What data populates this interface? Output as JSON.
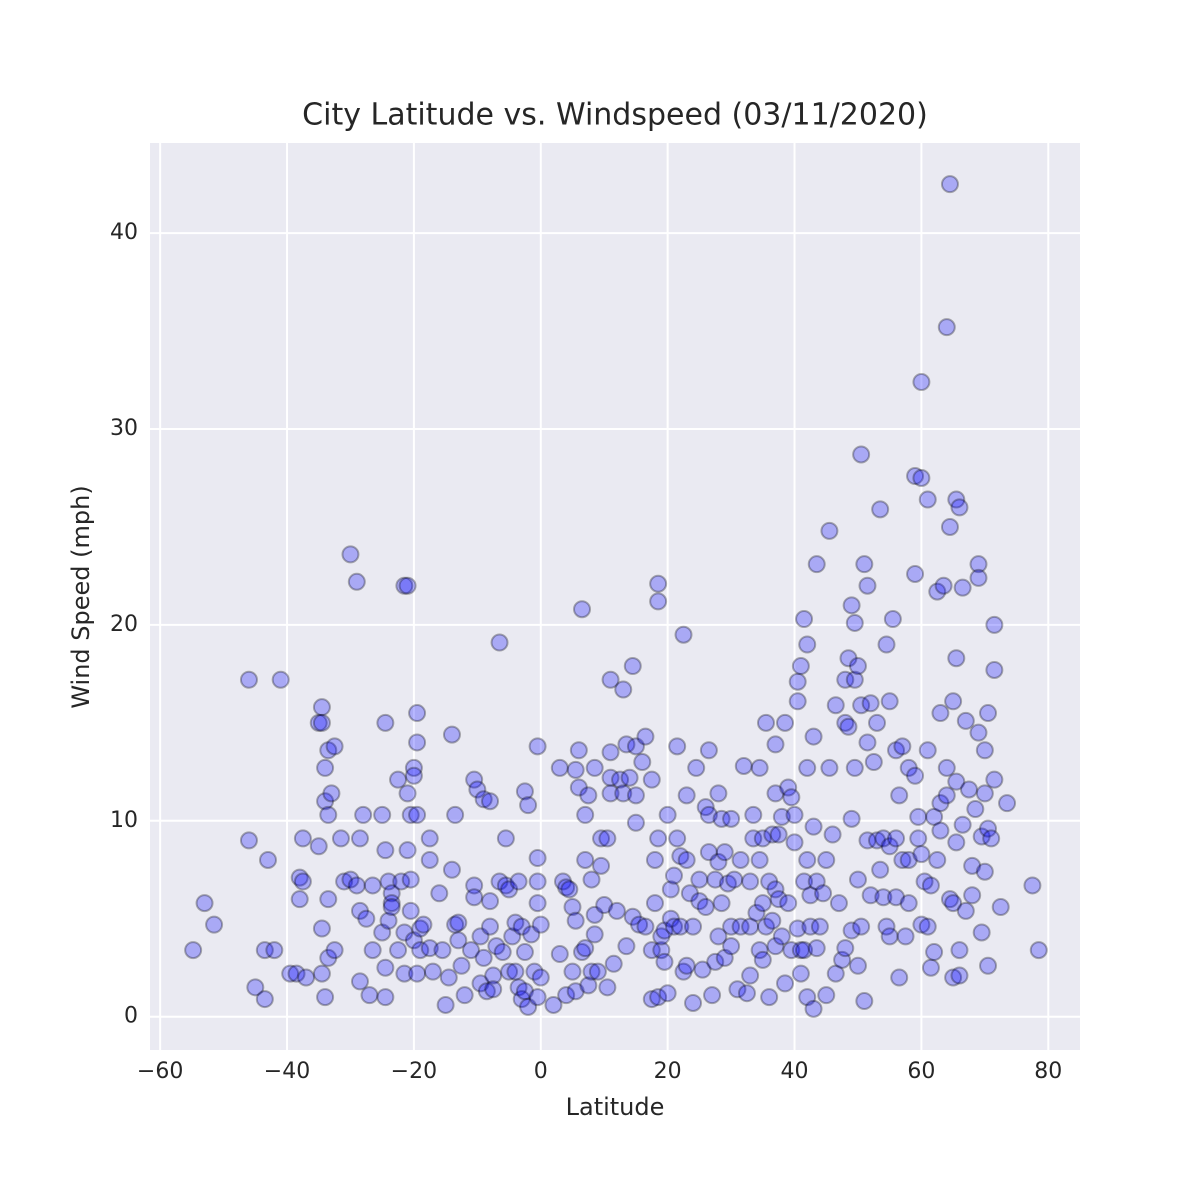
{
  "chart_data": {
    "type": "scatter",
    "title": "City Latitude vs. Windspeed (03/11/2020)",
    "x_label": "Latitude",
    "y_label": "Wind Speed (mph)",
    "color": "#0000ff",
    "grid": true,
    "xlim": [
      -61.6,
      85.0
    ],
    "ylim": [
      -1.7,
      44.6
    ],
    "xticks": [
      {
        "value": -60,
        "label": "−60"
      },
      {
        "value": -40,
        "label": "−40"
      },
      {
        "value": -20,
        "label": "−20"
      },
      0,
      20,
      40,
      60,
      80
    ],
    "yticks": [
      0,
      10,
      20,
      30,
      40
    ],
    "x": [
      -54.8,
      -53,
      -51.5,
      -46,
      -46,
      -45,
      -43.5,
      -43.5,
      -43,
      -42,
      -41,
      -39.5,
      -38.5,
      -38,
      -38,
      -37.5,
      -37.5,
      -37,
      -35,
      -35,
      -34.5,
      -34.5,
      -34.5,
      -34.5,
      -34,
      -34,
      -34,
      -33.5,
      -33.5,
      -33.5,
      -33.5,
      -33,
      -32.5,
      -32.5,
      -31.5,
      -31,
      -30,
      -30,
      -29,
      -29,
      -28.5,
      -28.5,
      -28.5,
      -28,
      -27.5,
      -27,
      -26.5,
      -26.5,
      -25,
      -25,
      -24.5,
      -24.5,
      -24.5,
      -24.5,
      -24,
      -24,
      -23.5,
      -23.5,
      -23.5,
      -22.5,
      -22.5,
      -22,
      -21.5,
      -21.5,
      -21.5,
      -21,
      -21,
      -21,
      -20.5,
      -20.5,
      -20.5,
      -20,
      -20,
      -20,
      -19.5,
      -19.5,
      -19.5,
      -19.5,
      -19,
      -19,
      -18.5,
      -17.5,
      -17.5,
      -17.5,
      -17,
      -16,
      -15.5,
      -15,
      -14.5,
      -14,
      -14,
      -13.5,
      -13.5,
      -13,
      -13,
      -12.5,
      -12,
      -11,
      -10.5,
      -10.5,
      -10.5,
      -10,
      -9.5,
      -9.5,
      -9,
      -9,
      -8.5,
      -8,
      -8,
      -8,
      -7.5,
      -7.5,
      -7,
      -6.5,
      -6.5,
      -6,
      -5.5,
      -5.5,
      -5,
      -5,
      -4.5,
      -4,
      -4,
      -3.5,
      -3.5,
      -3,
      -3,
      -2.5,
      -2.5,
      -2.5,
      -2,
      -2,
      -1.5,
      -1,
      -0.5,
      -0.5,
      -0.5,
      -0.5,
      -0.5,
      0,
      0,
      2,
      3,
      3,
      3.5,
      4,
      4,
      4.5,
      5,
      5,
      5.5,
      5.5,
      5.5,
      6,
      6,
      6.5,
      6.5,
      7,
      7,
      7,
      7.5,
      7.5,
      8,
      8,
      8.5,
      8.5,
      8.5,
      9,
      9.5,
      9.5,
      10,
      10.5,
      10.5,
      11,
      11,
      11,
      11,
      11.5,
      12,
      12.5,
      13,
      13,
      13.5,
      13.5,
      14,
      14.5,
      14.5,
      15,
      15,
      15,
      15.5,
      16,
      16.5,
      16.5,
      17.5,
      17.5,
      17.5,
      18,
      18,
      18.5,
      18.5,
      18.5,
      18.5,
      19,
      19,
      19.5,
      19.5,
      20,
      20,
      20.5,
      20.5,
      21,
      21,
      21.5,
      21.5,
      22,
      22,
      22.5,
      22.5,
      23,
      23,
      23,
      23.5,
      24,
      24,
      24.5,
      25,
      25,
      25.5,
      26,
      26,
      26.5,
      26.5,
      26.5,
      27,
      27.5,
      27.5,
      28,
      28,
      28,
      28.5,
      28.5,
      29,
      29,
      29.5,
      30,
      30,
      30,
      30.5,
      31,
      31.5,
      31.5,
      32,
      32.5,
      33,
      33,
      33,
      33.5,
      33.5,
      34,
      34.5,
      34.5,
      34.5,
      35,
      35,
      35,
      35.5,
      35.5,
      36,
      36,
      36.5,
      36.5,
      37,
      37,
      37,
      37,
      37.5,
      37.5,
      38,
      38,
      38.5,
      38.5,
      39,
      39,
      39.5,
      39.5,
      40,
      40,
      40.5,
      40.5,
      40.5,
      41,
      41,
      41,
      41.5,
      41.5,
      41.5,
      42,
      42,
      42,
      42,
      42.5,
      42.5,
      43,
      43,
      43,
      43.5,
      43.5,
      43.5,
      44,
      44.5,
      45,
      45,
      45.5,
      45.5,
      46,
      46.5,
      46.5,
      47,
      47.5,
      48,
      48,
      48,
      48.5,
      48.5,
      49,
      49,
      49,
      49.5,
      49.5,
      49.5,
      50,
      50,
      50,
      50.5,
      50.5,
      50.5,
      51,
      51,
      51.5,
      51.5,
      51.5,
      52,
      52,
      52.5,
      53,
      53,
      53.5,
      53.5,
      54,
      54,
      54.5,
      54.5,
      55,
      55,
      55,
      55.5,
      56,
      56,
      56,
      56.5,
      56.5,
      57,
      57,
      57.5,
      58,
      58,
      58,
      59,
      59,
      59,
      59.5,
      59.5,
      60,
      60,
      60,
      60,
      60.5,
      61,
      61,
      61,
      61.5,
      61.5,
      62,
      62,
      62.5,
      62.5,
      63,
      63,
      63,
      63.5,
      64,
      64,
      64,
      64.5,
      64.5,
      64.5,
      65,
      65,
      65,
      65.5,
      65.5,
      65.5,
      65.5,
      66,
      66,
      66,
      66.5,
      66.5,
      67,
      67,
      67.5,
      68,
      68,
      68.5,
      69,
      69,
      69,
      69.5,
      69.5,
      70,
      70,
      70,
      70.5,
      70.5,
      70.5,
      71,
      71.5,
      71.5,
      71.5,
      72.5,
      73.5,
      77.5,
      78.5
    ],
    "values": [
      3.4,
      5.8,
      4.7,
      17.2,
      9,
      1.5,
      0.9,
      3.4,
      8,
      3.4,
      17.2,
      2.2,
      2.2,
      6,
      7.1,
      9.1,
      6.9,
      2,
      15,
      8.7,
      15.8,
      15,
      4.5,
      2.2,
      12.7,
      1,
      11,
      13.6,
      10.3,
      6,
      3,
      11.4,
      13.8,
      3.4,
      9.1,
      6.9,
      23.6,
      7,
      6.7,
      22.2,
      9.1,
      5.4,
      1.8,
      10.3,
      5,
      1.1,
      6.7,
      3.4,
      10.3,
      4.3,
      15,
      8.5,
      2.5,
      1,
      6.9,
      4.9,
      6.3,
      5.8,
      5.6,
      12.1,
      3.4,
      6.9,
      2.2,
      4.3,
      22,
      22,
      8.5,
      11.4,
      10.3,
      7,
      5.4,
      12.7,
      12.3,
      3.9,
      15.5,
      14,
      10.3,
      2.2,
      3.4,
      4.5,
      4.7,
      9.1,
      8,
      3.5,
      2.3,
      6.3,
      3.4,
      0.6,
      2,
      14.4,
      7.5,
      10.3,
      4.7,
      4.8,
      3.9,
      2.6,
      1.1,
      3.4,
      12.1,
      6.7,
      6.1,
      11.6,
      4.1,
      1.7,
      11.1,
      3,
      1.3,
      11,
      5.9,
      4.6,
      2.1,
      1.4,
      3.6,
      19.1,
      6.9,
      3.3,
      9.1,
      6.7,
      6.5,
      2.3,
      4.1,
      4.8,
      2.3,
      6.9,
      1.5,
      4.6,
      0.9,
      11.5,
      3.3,
      1.3,
      10.8,
      0.5,
      4.2,
      2.3,
      13.8,
      8.1,
      6.9,
      5.8,
      1,
      4.7,
      2,
      0.6,
      12.7,
      3.2,
      6.9,
      1.1,
      6.6,
      6.5,
      2.3,
      5.6,
      12.6,
      4.9,
      1.3,
      13.6,
      11.7,
      20.8,
      3.3,
      10.3,
      8,
      3.5,
      11.3,
      1.6,
      7,
      2.3,
      12.7,
      5.2,
      4.2,
      2.3,
      7.7,
      9.1,
      5.7,
      9.1,
      1.5,
      17.2,
      13.5,
      12.2,
      11.4,
      2.7,
      5.4,
      12.1,
      11.4,
      16.7,
      3.6,
      13.9,
      12.2,
      17.9,
      5.1,
      9.9,
      13.8,
      11.3,
      4.7,
      13,
      14.3,
      4.6,
      12.1,
      3.4,
      0.9,
      8,
      5.8,
      22.1,
      21.2,
      9.1,
      1,
      3.4,
      4.1,
      4.4,
      2.8,
      10.3,
      1.2,
      6.5,
      5,
      7.2,
      4.6,
      13.8,
      9.1,
      4.6,
      8.2,
      19.5,
      2.3,
      11.3,
      8,
      2.6,
      6.3,
      4.6,
      0.7,
      12.7,
      5.9,
      7,
      2.4,
      10.7,
      5.6,
      13.6,
      10.3,
      8.4,
      1.1,
      7,
      2.8,
      11.4,
      7.9,
      4.1,
      10.1,
      5.8,
      8.4,
      3,
      6.8,
      10.1,
      4.6,
      3.6,
      7,
      1.4,
      8,
      4.6,
      12.8,
      1.2,
      6.9,
      4.6,
      2.1,
      10.3,
      9.1,
      5.3,
      12.7,
      8,
      3.4,
      9.1,
      5.8,
      2.9,
      15,
      4.6,
      6.9,
      1,
      9.3,
      4.9,
      13.9,
      11.4,
      6.5,
      3.6,
      9.3,
      6,
      10.2,
      4.1,
      15,
      1.7,
      11.7,
      5.8,
      11.2,
      3.4,
      8.9,
      10.3,
      17.1,
      16.1,
      4.5,
      17.9,
      3.4,
      2.2,
      20.3,
      6.9,
      3.4,
      19,
      12.7,
      8,
      1,
      6.2,
      4.6,
      14.3,
      9.7,
      0.4,
      23.1,
      6.9,
      3.5,
      4.6,
      6.3,
      8,
      1.1,
      24.8,
      12.7,
      9.3,
      2.2,
      15.9,
      5.8,
      2.9,
      17.2,
      15,
      3.5,
      18.3,
      14.8,
      21,
      10.1,
      4.4,
      20.1,
      17.2,
      12.7,
      17.9,
      7,
      2.6,
      28.7,
      15.9,
      4.6,
      23.1,
      0.8,
      22,
      14,
      9,
      16,
      6.2,
      13,
      15,
      9,
      25.9,
      7.5,
      9.1,
      6.1,
      19,
      4.6,
      8.7,
      16.1,
      4.1,
      20.3,
      13.6,
      9.1,
      6.1,
      11.3,
      2,
      13.8,
      8,
      4.1,
      12.7,
      5.8,
      8,
      27.6,
      22.6,
      12.3,
      9.1,
      10.2,
      27.5,
      32.4,
      8.3,
      4.7,
      6.9,
      13.6,
      26.4,
      4.6,
      6.7,
      2.5,
      10.2,
      3.3,
      21.7,
      8,
      15.5,
      10.9,
      9.5,
      22,
      35.2,
      12.7,
      11.3,
      42.5,
      25,
      6,
      16.1,
      2,
      5.8,
      26.4,
      18.3,
      12,
      8.9,
      26,
      3.4,
      2.1,
      21.9,
      9.8,
      15.1,
      5.4,
      11.6,
      7.7,
      6.2,
      10.6,
      23.1,
      22.4,
      14.5,
      9.2,
      4.3,
      13.6,
      11.4,
      7.4,
      15.5,
      9.6,
      2.6,
      9.1,
      20,
      17.7,
      12.1,
      5.6,
      10.9,
      6.7,
      3.4
    ]
  }
}
